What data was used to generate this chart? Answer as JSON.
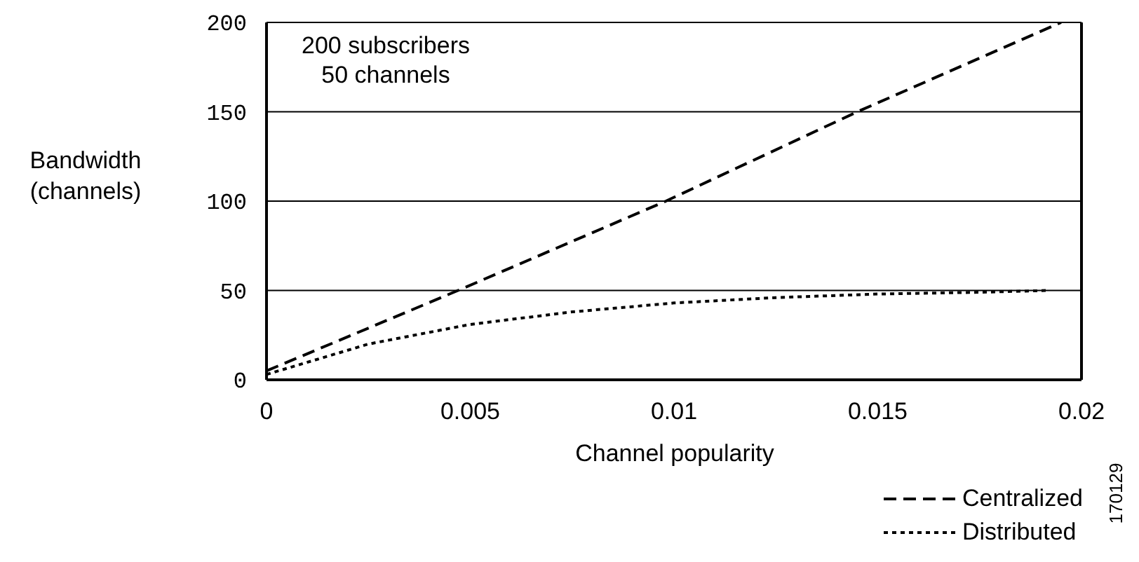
{
  "chart_data": {
    "type": "line",
    "xlabel": "Channel popularity",
    "ylabel": "Bandwidth\n(channels)",
    "annotations": [
      "200 subscribers\n50 channels",
      "170129"
    ],
    "xlim": [
      0,
      0.02
    ],
    "xticks": [
      0,
      0.005,
      0.01,
      0.015,
      0.02
    ],
    "ylim": [
      0,
      200
    ],
    "yticks": [
      0,
      50,
      100,
      150,
      200
    ],
    "grid": "y",
    "legend": "bottom right",
    "marker": "none",
    "series": [
      {
        "name": "Centralized",
        "color": "#000000",
        "line_style": "dashed",
        "x": [
          0,
          0.0047,
          0.0098,
          0.0145,
          0.0195
        ],
        "values": [
          5,
          50,
          100,
          150,
          200
        ]
      },
      {
        "name": "Distributed",
        "color": "#000000",
        "line_style": "dotted",
        "x": [
          0,
          0.0025,
          0.005,
          0.0075,
          0.01,
          0.0125,
          0.015,
          0.0175,
          0.0192
        ],
        "values": [
          3,
          20,
          31,
          38,
          43,
          46,
          48,
          49,
          50
        ]
      }
    ]
  }
}
